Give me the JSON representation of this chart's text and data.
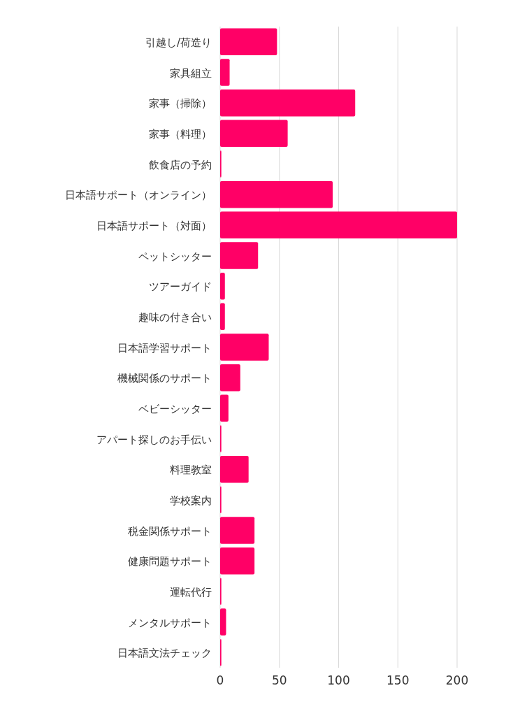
{
  "chart_data": {
    "type": "bar",
    "orientation": "horizontal",
    "categories": [
      "引越し/荷造り",
      "家具組立",
      "家事（掃除）",
      "家事（料理）",
      "飲食店の予約",
      "日本語サポート（オンライン）",
      "日本語サポート（対面）",
      "ペットシッター",
      "ツアーガイド",
      "趣味の付き合い",
      "日本語学習サポート",
      "機械関係のサポート",
      "ベビーシッター",
      "アパート探しのお手伝い",
      "料理教室",
      "学校案内",
      "税金関係サポート",
      "健康問題サポート",
      "運転代行",
      "メンタルサポート",
      "日本語文法チェック"
    ],
    "values": [
      48,
      8,
      114,
      57,
      1,
      95,
      200,
      32,
      4,
      4,
      41,
      17,
      7,
      1,
      24,
      1,
      29,
      29,
      1,
      5,
      1
    ],
    "color": "#ff0066",
    "xlim": [
      0,
      200
    ],
    "xticks": [
      0,
      50,
      100,
      150,
      200
    ],
    "grid": "x"
  }
}
